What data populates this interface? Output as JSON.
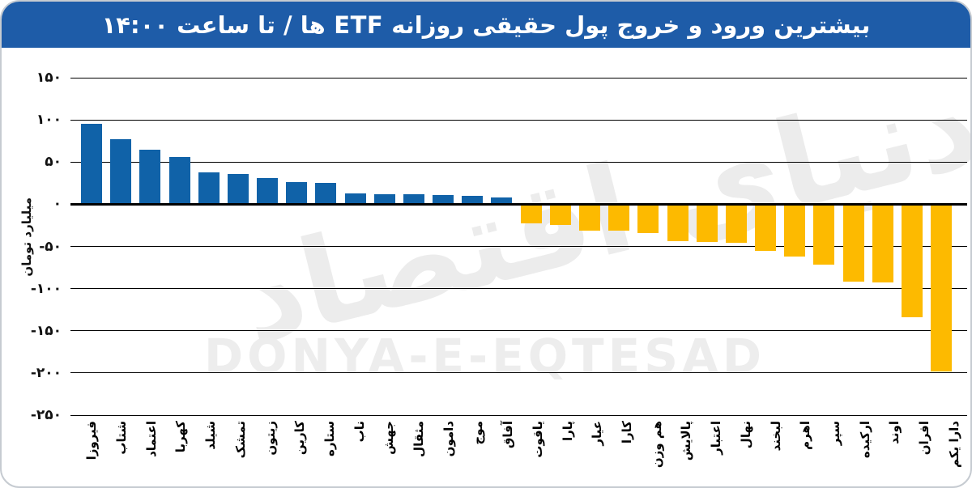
{
  "title": "بیشترین ورود و خروج پول حقیقی روزانه ETF ها / تا ساعت ۱۴:۰۰",
  "watermarks": {
    "persian": "دنیای اقتصاد",
    "latin": "DONYA-E-EQTESAD"
  },
  "colors": {
    "header_bg": "#1e5ca8",
    "positive_bar": "#1062a8",
    "negative_bar": "#fdba00",
    "gridline": "#000000",
    "watermark": "#ececec",
    "frame_border": "#c6cbd1"
  },
  "chart_data": {
    "type": "bar",
    "title": "بیشترین ورود و خروج پول حقیقی روزانه ETF ها / تا ساعت ۱۴:۰۰",
    "ylabel": "میلیارد تومان",
    "xlabel": "",
    "ylim": [
      -250,
      150
    ],
    "grid": true,
    "legend": "none",
    "yticks": [
      {
        "value": 150,
        "label": "۱۵۰"
      },
      {
        "value": 100,
        "label": "۱۰۰"
      },
      {
        "value": 50,
        "label": "۵۰"
      },
      {
        "value": 0,
        "label": "۰"
      },
      {
        "value": -50,
        "label": "-۵۰"
      },
      {
        "value": -100,
        "label": "-۱۰۰"
      },
      {
        "value": -150,
        "label": "-۱۵۰"
      },
      {
        "value": -200,
        "label": "-۲۰۰"
      },
      {
        "value": -250,
        "label": "-۲۵۰"
      }
    ],
    "categories": [
      "فیروزا",
      "شتاب",
      "اعتماد",
      "کهربا",
      "شیلد",
      "تمشک",
      "زیتون",
      "کارین",
      "ستاره",
      "ناب",
      "جهش",
      "مثقال",
      "دامون",
      "موج",
      "آفاق",
      "یاقوت",
      "پارا",
      "عیار",
      "کارا",
      "هم وزن",
      "پالایش",
      "اعتبار",
      "نهال",
      "لبخند",
      "اهرم",
      "سپر",
      "ارکیده",
      "اوند",
      "افران",
      "دارا یکم"
    ],
    "values": [
      95,
      77,
      65,
      56,
      38,
      36,
      31,
      26,
      25,
      13,
      12,
      12,
      11,
      10,
      8,
      -23,
      -25,
      -31,
      -31,
      -34,
      -44,
      -45,
      -46,
      -55,
      -62,
      -72,
      -92,
      -93,
      -134,
      -198
    ]
  }
}
